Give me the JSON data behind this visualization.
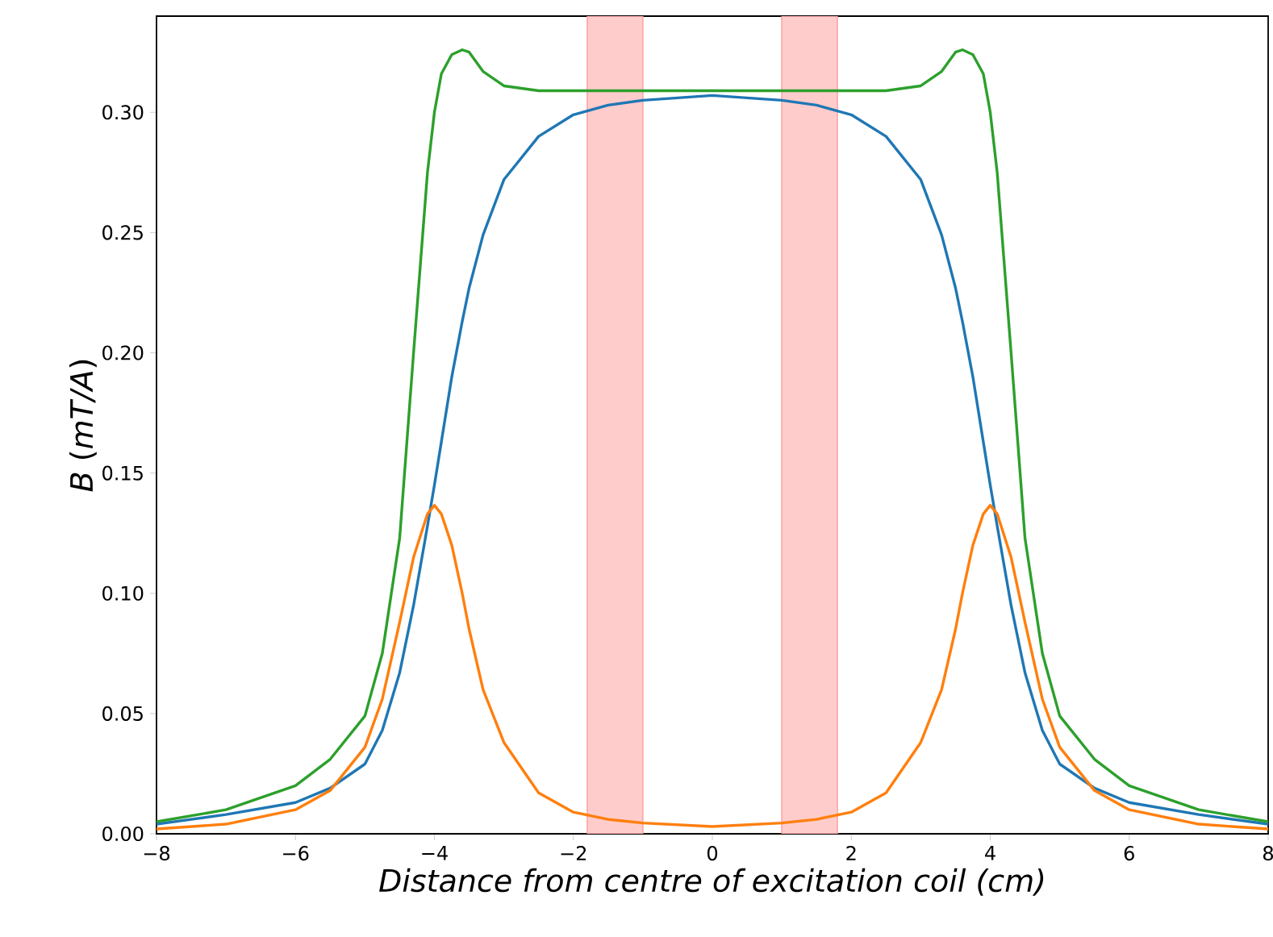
{
  "chart_data": {
    "type": "line",
    "xlabel": "Distance from centre of excitation coil (cm)",
    "ylabel": "*B* (*mT/A*)",
    "x": [
      -8,
      -7,
      -6,
      -5.5,
      -5,
      -4.75,
      -4.5,
      -4.3,
      -4.1,
      -4,
      -3.9,
      -3.75,
      -3.6,
      -3.5,
      -3.3,
      -3,
      -2.5,
      -2,
      -1.5,
      -1,
      0,
      1,
      1.5,
      2,
      2.5,
      3,
      3.3,
      3.5,
      3.6,
      3.75,
      3.9,
      4,
      4.1,
      4.3,
      4.5,
      4.75,
      5,
      5.5,
      6,
      7,
      8
    ],
    "series": [
      {
        "color": "#1f77b4",
        "values": [
          0.004,
          0.008,
          0.013,
          0.019,
          0.029,
          0.043,
          0.067,
          0.095,
          0.128,
          0.145,
          0.163,
          0.19,
          0.213,
          0.227,
          0.249,
          0.272,
          0.29,
          0.299,
          0.303,
          0.305,
          0.307,
          0.305,
          0.303,
          0.299,
          0.29,
          0.272,
          0.249,
          0.227,
          0.213,
          0.19,
          0.163,
          0.145,
          0.128,
          0.095,
          0.067,
          0.043,
          0.029,
          0.019,
          0.013,
          0.008,
          0.004
        ]
      },
      {
        "color": "#ff7f0e",
        "values": [
          0.002,
          0.004,
          0.01,
          0.018,
          0.036,
          0.056,
          0.088,
          0.115,
          0.133,
          0.1366,
          0.133,
          0.12,
          0.1,
          0.085,
          0.06,
          0.038,
          0.017,
          0.009,
          0.006,
          0.0045,
          0.003,
          0.0045,
          0.006,
          0.009,
          0.017,
          0.038,
          0.06,
          0.085,
          0.1,
          0.12,
          0.133,
          0.1366,
          0.133,
          0.115,
          0.088,
          0.056,
          0.036,
          0.018,
          0.01,
          0.004,
          0.002
        ]
      },
      {
        "color": "#2ca02c",
        "values": [
          0.005,
          0.01,
          0.02,
          0.031,
          0.049,
          0.075,
          0.123,
          0.2,
          0.275,
          0.3,
          0.316,
          0.324,
          0.326,
          0.325,
          0.317,
          0.311,
          0.309,
          0.309,
          0.309,
          0.309,
          0.309,
          0.309,
          0.309,
          0.309,
          0.309,
          0.311,
          0.317,
          0.325,
          0.326,
          0.324,
          0.316,
          0.3,
          0.275,
          0.2,
          0.123,
          0.075,
          0.049,
          0.031,
          0.02,
          0.01,
          0.005
        ]
      }
    ],
    "bands": [
      {
        "axis": "x",
        "from": -1.8,
        "to": -1,
        "color": "#ffcccc"
      },
      {
        "axis": "x",
        "from": 1,
        "to": 1.8,
        "color": "#ffcccc"
      }
    ],
    "xlim": [
      -8,
      8
    ],
    "ylim": [
      0,
      0.34
    ],
    "xticks": [
      {
        "value": -8,
        "label": "−8"
      },
      {
        "value": -6,
        "label": "−6"
      },
      {
        "value": -4,
        "label": "−4"
      },
      {
        "value": -2,
        "label": "−2"
      },
      0,
      2,
      4,
      6,
      8
    ],
    "yticks": [
      {
        "value": 0,
        "label": "0.00"
      },
      {
        "value": 0.05,
        "label": "0.05"
      },
      {
        "value": 0.1,
        "label": "0.10"
      },
      {
        "value": 0.15,
        "label": "0.15"
      },
      {
        "value": 0.2,
        "label": "0.20"
      },
      {
        "value": 0.25,
        "label": "0.25"
      },
      {
        "value": 0.3,
        "label": "0.30"
      }
    ],
    "grid": false,
    "marker": "none",
    "line_style": "solid"
  }
}
